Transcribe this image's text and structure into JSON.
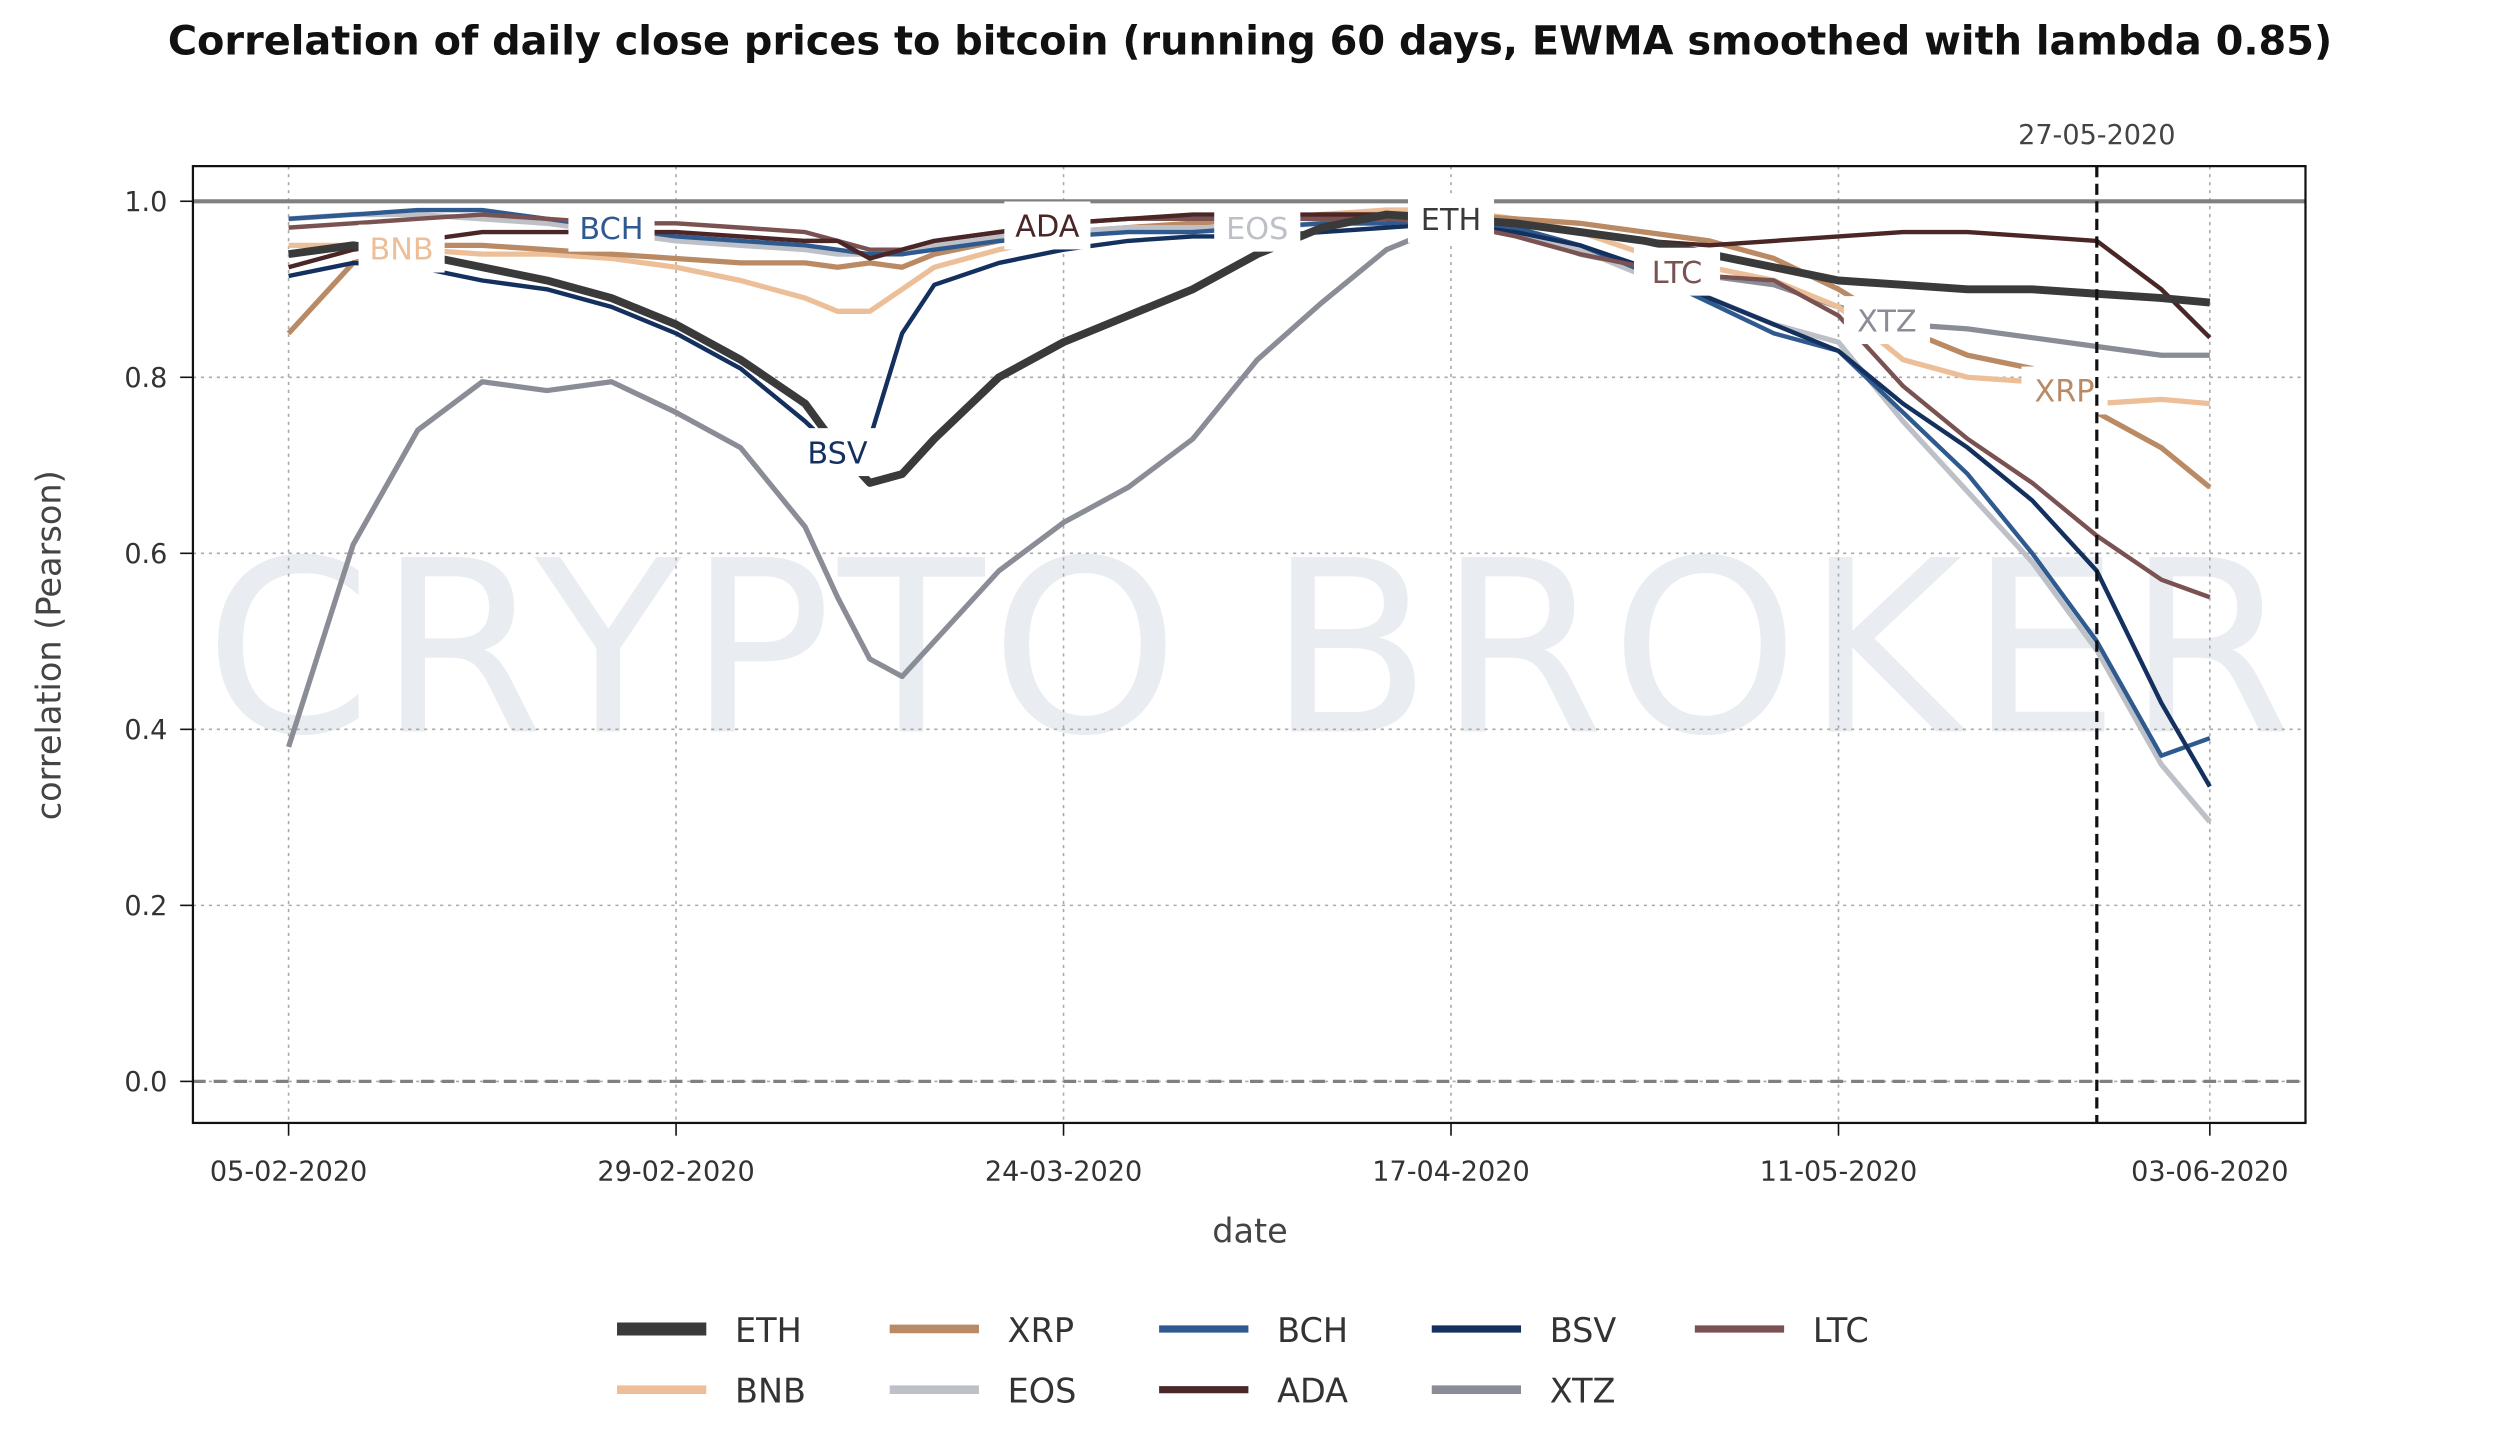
{
  "chart_data": {
    "type": "line",
    "title": "Correlation of daily close prices to bitcoin (running 60 days, EWMA smoothed with lambda 0.85)",
    "xlabel": "date",
    "ylabel": "correlation (Pearson)",
    "watermark": "CRYPTO BROKER",
    "x_unit": "days since 05-02-2020",
    "xlim": [
      -6,
      125
    ],
    "ylim": [
      -0.05,
      1.04
    ],
    "grid": true,
    "legend_position": "bottom-center",
    "x_ticks": [
      {
        "day": 0,
        "label": "05-02-2020"
      },
      {
        "day": 24,
        "label": "29-02-2020"
      },
      {
        "day": 48,
        "label": "24-03-2020"
      },
      {
        "day": 72,
        "label": "17-04-2020"
      },
      {
        "day": 96,
        "label": "11-05-2020"
      },
      {
        "day": 119,
        "label": "03-06-2020"
      }
    ],
    "y_ticks": [
      {
        "value": 0.0,
        "label": "0.0"
      },
      {
        "value": 0.2,
        "label": "0.2"
      },
      {
        "value": 0.4,
        "label": "0.4"
      },
      {
        "value": 0.6,
        "label": "0.6"
      },
      {
        "value": 0.8,
        "label": "0.8"
      },
      {
        "value": 1.0,
        "label": "1.0"
      }
    ],
    "reference_lines": [
      {
        "type": "horizontal",
        "value": 1.0,
        "style": "solid",
        "color": "#808080"
      },
      {
        "type": "horizontal",
        "value": 0.0,
        "style": "dashed",
        "color": "#808080"
      }
    ],
    "vertical_marker": {
      "day": 112,
      "label": "27-05-2020",
      "color": "#111111"
    },
    "x": [
      0,
      4,
      8,
      12,
      16,
      20,
      24,
      28,
      32,
      34,
      36,
      38,
      40,
      44,
      48,
      52,
      56,
      60,
      64,
      68,
      72,
      76,
      80,
      84,
      88,
      92,
      96,
      100,
      104,
      108,
      112,
      116,
      119
    ],
    "series": [
      {
        "name": "ETH",
        "color": "#3a3a3a",
        "width": 9,
        "values": [
          0.94,
          0.95,
          0.94,
          0.925,
          0.91,
          0.89,
          0.86,
          0.82,
          0.77,
          0.72,
          0.68,
          0.69,
          0.73,
          0.8,
          0.84,
          0.87,
          0.9,
          0.94,
          0.97,
          0.985,
          0.98,
          0.975,
          0.965,
          0.955,
          0.94,
          0.925,
          0.91,
          0.905,
          0.9,
          0.9,
          0.895,
          0.89,
          0.885
        ],
        "label_day": 72
      },
      {
        "name": "XRP",
        "color": "#b98a64",
        "width": 6,
        "values": [
          0.85,
          0.93,
          0.95,
          0.95,
          0.945,
          0.94,
          0.935,
          0.93,
          0.93,
          0.925,
          0.93,
          0.925,
          0.94,
          0.955,
          0.965,
          0.97,
          0.975,
          0.98,
          0.985,
          0.985,
          0.985,
          0.98,
          0.975,
          0.965,
          0.955,
          0.935,
          0.9,
          0.855,
          0.825,
          0.81,
          0.76,
          0.72,
          0.675
        ],
        "label_day": 110
      },
      {
        "name": "BCH",
        "color": "#2f5a8f",
        "width": 5,
        "values": [
          0.98,
          0.985,
          0.99,
          0.99,
          0.98,
          0.97,
          0.96,
          0.955,
          0.95,
          0.945,
          0.94,
          0.94,
          0.945,
          0.955,
          0.96,
          0.965,
          0.965,
          0.97,
          0.975,
          0.975,
          0.98,
          0.97,
          0.95,
          0.92,
          0.885,
          0.85,
          0.83,
          0.76,
          0.69,
          0.6,
          0.5,
          0.37,
          0.39
        ],
        "label_day": 20
      },
      {
        "name": "BSV",
        "color": "#13305e",
        "width": 5,
        "values": [
          0.915,
          0.93,
          0.925,
          0.91,
          0.9,
          0.88,
          0.85,
          0.81,
          0.75,
          0.715,
          0.73,
          0.85,
          0.905,
          0.93,
          0.945,
          0.955,
          0.96,
          0.96,
          0.965,
          0.97,
          0.975,
          0.965,
          0.95,
          0.925,
          0.89,
          0.86,
          0.83,
          0.77,
          0.72,
          0.66,
          0.58,
          0.43,
          0.335
        ],
        "label_day": 34
      },
      {
        "name": "LTC",
        "color": "#7a5252",
        "width": 5,
        "values": [
          0.97,
          0.975,
          0.98,
          0.985,
          0.98,
          0.975,
          0.975,
          0.97,
          0.965,
          0.955,
          0.945,
          0.945,
          0.955,
          0.965,
          0.975,
          0.98,
          0.98,
          0.98,
          0.98,
          0.98,
          0.975,
          0.96,
          0.94,
          0.925,
          0.915,
          0.91,
          0.87,
          0.79,
          0.73,
          0.68,
          0.62,
          0.57,
          0.55
        ],
        "label_day": 86
      },
      {
        "name": "BNB",
        "color": "#edbf98",
        "width": 6,
        "values": [
          0.95,
          0.95,
          0.945,
          0.94,
          0.94,
          0.935,
          0.925,
          0.91,
          0.89,
          0.875,
          0.875,
          0.9,
          0.925,
          0.945,
          0.96,
          0.97,
          0.975,
          0.98,
          0.985,
          0.99,
          0.99,
          0.98,
          0.965,
          0.94,
          0.925,
          0.91,
          0.88,
          0.82,
          0.8,
          0.795,
          0.77,
          0.775,
          0.77
        ],
        "label_day": 7
      },
      {
        "name": "EOS",
        "color": "#bdc0c7",
        "width": 6,
        "values": [
          0.98,
          0.985,
          0.985,
          0.98,
          0.975,
          0.965,
          0.955,
          0.95,
          0.945,
          0.94,
          0.94,
          0.94,
          0.95,
          0.96,
          0.965,
          0.97,
          0.97,
          0.97,
          0.975,
          0.975,
          0.975,
          0.965,
          0.945,
          0.915,
          0.89,
          0.86,
          0.84,
          0.75,
          0.67,
          0.59,
          0.49,
          0.36,
          0.295
        ],
        "label_day": 60
      },
      {
        "name": "ADA",
        "color": "#4a2626",
        "width": 5,
        "values": [
          0.925,
          0.945,
          0.955,
          0.965,
          0.965,
          0.965,
          0.965,
          0.96,
          0.955,
          0.955,
          0.935,
          0.945,
          0.955,
          0.965,
          0.975,
          0.98,
          0.985,
          0.985,
          0.985,
          0.985,
          0.98,
          0.975,
          0.965,
          0.955,
          0.95,
          0.955,
          0.96,
          0.965,
          0.965,
          0.96,
          0.955,
          0.9,
          0.845
        ],
        "label_day": 47
      },
      {
        "name": "XTZ",
        "color": "#8a8d95",
        "width": 6,
        "values": [
          0.38,
          0.61,
          0.74,
          0.795,
          0.785,
          0.795,
          0.76,
          0.72,
          0.63,
          0.55,
          0.48,
          0.46,
          0.5,
          0.58,
          0.635,
          0.675,
          0.73,
          0.82,
          0.885,
          0.945,
          0.975,
          0.965,
          0.94,
          0.925,
          0.915,
          0.905,
          0.88,
          0.86,
          0.855,
          0.845,
          0.835,
          0.825,
          0.825
        ],
        "label_day": 99
      }
    ],
    "legend": [
      "ETH",
      "XRP",
      "BCH",
      "BSV",
      "LTC",
      "BNB",
      "EOS",
      "ADA",
      "XTZ"
    ]
  }
}
